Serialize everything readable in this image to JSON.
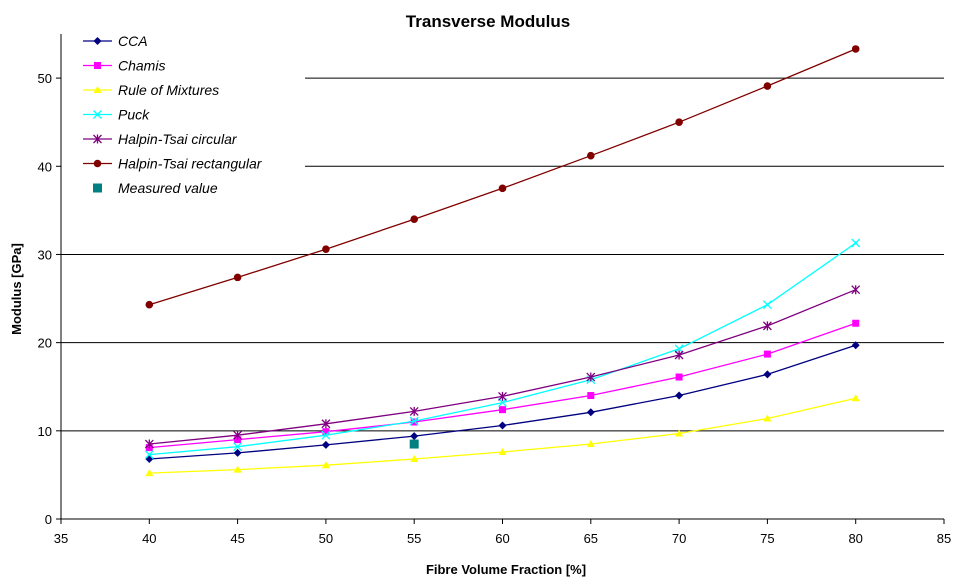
{
  "chart_data": {
    "type": "line",
    "title": "Transverse Modulus",
    "xlabel": "Fibre Volume Fraction [%]",
    "ylabel": "Modulus [GPa]",
    "xlim": [
      35,
      85
    ],
    "ylim": [
      0,
      55
    ],
    "xticks": [
      35,
      40,
      45,
      50,
      55,
      60,
      65,
      70,
      75,
      80,
      85
    ],
    "yticks": [
      0,
      10,
      20,
      30,
      40,
      50
    ],
    "grid": "horizontal major gridlines",
    "legend_position": "top-left",
    "x": [
      40,
      45,
      50,
      55,
      60,
      65,
      70,
      75,
      80
    ],
    "series": [
      {
        "name": "CCA",
        "color": "#000080",
        "marker": "diamond",
        "values": [
          6.8,
          7.5,
          8.4,
          9.4,
          10.6,
          12.1,
          14.0,
          16.4,
          19.7
        ]
      },
      {
        "name": "Chamis",
        "color": "#FF00FF",
        "marker": "square",
        "values": [
          8.1,
          9.0,
          9.9,
          11.0,
          12.4,
          14.0,
          16.1,
          18.7,
          22.2
        ]
      },
      {
        "name": "Rule of Mixtures",
        "color": "#FFFF00",
        "marker": "triangle",
        "values": [
          5.2,
          5.6,
          6.1,
          6.8,
          7.6,
          8.5,
          9.7,
          11.4,
          13.7
        ]
      },
      {
        "name": "Puck",
        "color": "#00FFFF",
        "marker": "x",
        "values": [
          7.3,
          8.2,
          9.5,
          11.1,
          13.2,
          15.8,
          19.3,
          24.3,
          31.3
        ]
      },
      {
        "name": "Halpin-Tsai circular",
        "color": "#800080",
        "marker": "asterisk",
        "values": [
          8.5,
          9.5,
          10.8,
          12.2,
          13.9,
          16.1,
          18.6,
          21.9,
          26.0
        ]
      },
      {
        "name": "Halpin-Tsai rectangular",
        "color": "#800000",
        "marker": "circle",
        "values": [
          24.3,
          27.4,
          30.6,
          34.0,
          37.5,
          41.2,
          45.0,
          49.1,
          53.3
        ]
      },
      {
        "name": "Measured value",
        "color": "#008080",
        "marker": "square-large",
        "line": false,
        "points": [
          [
            55,
            8.5
          ]
        ]
      }
    ]
  }
}
